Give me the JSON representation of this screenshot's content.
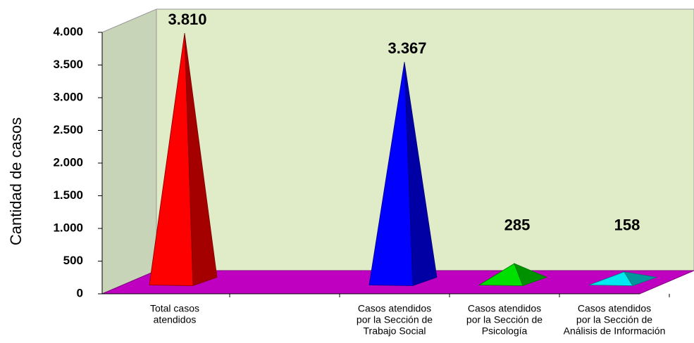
{
  "chart_data": {
    "type": "pyramid3d",
    "y_label": "Cantidad de casos",
    "categories": [
      [
        "Total casos",
        "atendidos"
      ],
      null,
      [
        "Casos atendidos",
        "por la Sección de",
        "Trabajo Social"
      ],
      [
        "Casos atendidos",
        "por la Sección de",
        "Psicología"
      ],
      [
        "Casos atendidos",
        "por la Sección de",
        "Análisis de Información"
      ]
    ],
    "values": [
      3810,
      null,
      3367,
      285,
      158
    ],
    "value_labels": [
      "3.810",
      null,
      "3.367",
      "285",
      "158"
    ],
    "colors": [
      "#ff0000",
      null,
      "#0000ff",
      "#00e000",
      "#00e8f0"
    ],
    "ylim": [
      0,
      4000
    ],
    "yticks": [
      0,
      500,
      {
        "value": 1000,
        "label": "1.000"
      },
      {
        "value": 1500,
        "label": "1.500"
      },
      {
        "value": 2000,
        "label": "2.000"
      },
      {
        "value": 2500,
        "label": "2.500"
      },
      {
        "value": 3000,
        "label": "3.000"
      },
      {
        "value": 3500,
        "label": "3.500"
      },
      {
        "value": 4000,
        "label": "4.000"
      }
    ],
    "wall_color": "#e0ecc8",
    "side_wall_color": "#c8d4b8",
    "floor_color": "#c000c0"
  }
}
